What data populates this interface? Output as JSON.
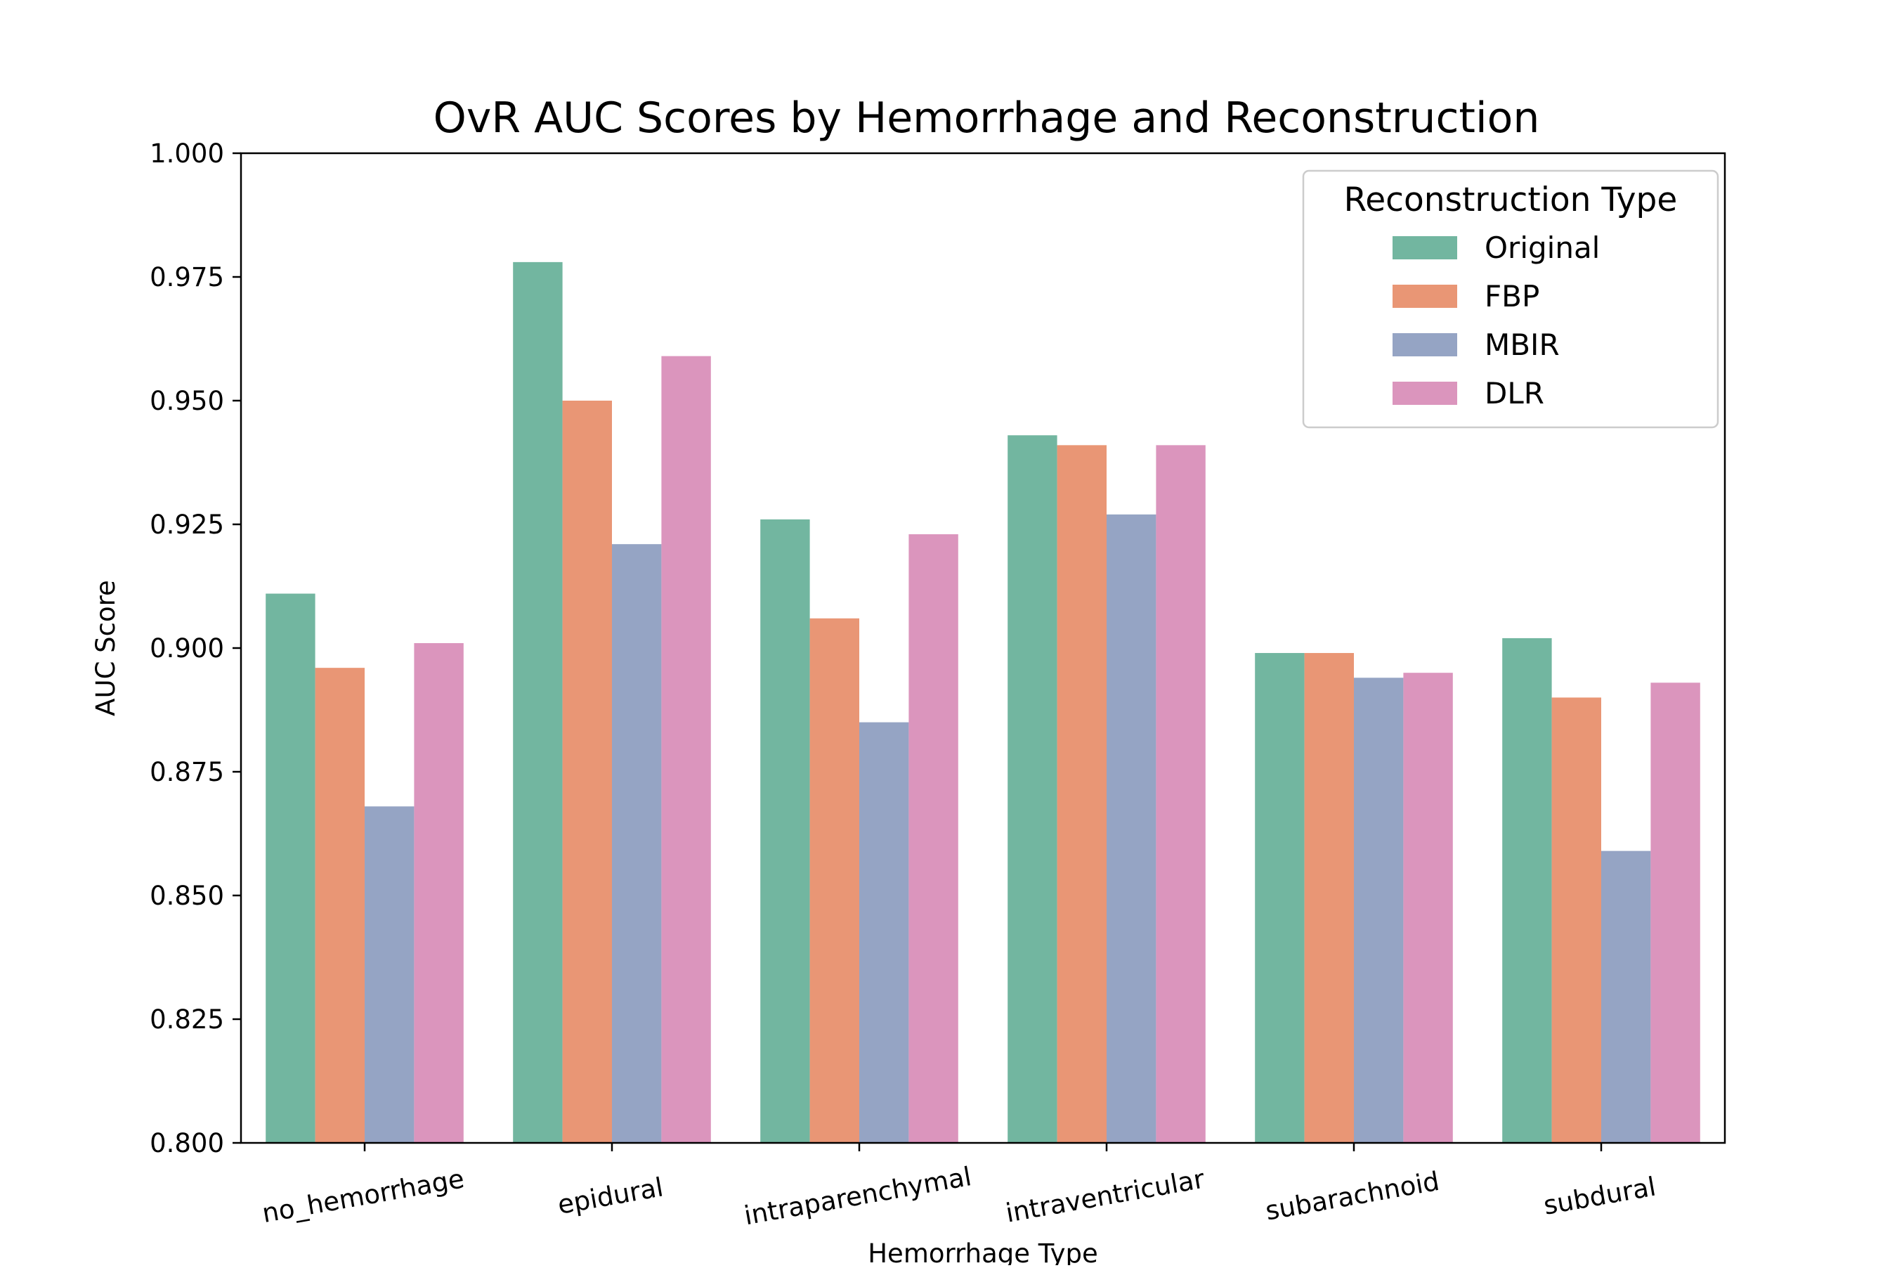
{
  "chart_data": {
    "type": "bar",
    "title": "OvR AUC Scores by Hemorrhage and Reconstruction",
    "xlabel": "Hemorrhage Type",
    "ylabel": "AUC Score",
    "ylim": [
      0.8,
      1.0
    ],
    "yticks": [
      "0.800",
      "0.825",
      "0.850",
      "0.875",
      "0.900",
      "0.925",
      "0.950",
      "0.975",
      "1.000"
    ],
    "categories": [
      "no_hemorrhage",
      "epidural",
      "intraparenchymal",
      "intraventricular",
      "subarachnoid",
      "subdural"
    ],
    "series": [
      {
        "name": "Original",
        "color": "#72b6a0",
        "values": [
          0.911,
          0.978,
          0.926,
          0.943,
          0.899,
          0.902
        ]
      },
      {
        "name": "FBP",
        "color": "#e99675",
        "values": [
          0.896,
          0.95,
          0.906,
          0.941,
          0.899,
          0.89
        ]
      },
      {
        "name": "MBIR",
        "color": "#95a4c4",
        "values": [
          0.868,
          0.921,
          0.885,
          0.927,
          0.894,
          0.859
        ]
      },
      {
        "name": "DLR",
        "color": "#db95bd",
        "values": [
          0.901,
          0.959,
          0.923,
          0.941,
          0.895,
          0.893
        ]
      }
    ],
    "legend": {
      "title": "Reconstruction Type",
      "position": "top-right"
    },
    "grid": false
  }
}
